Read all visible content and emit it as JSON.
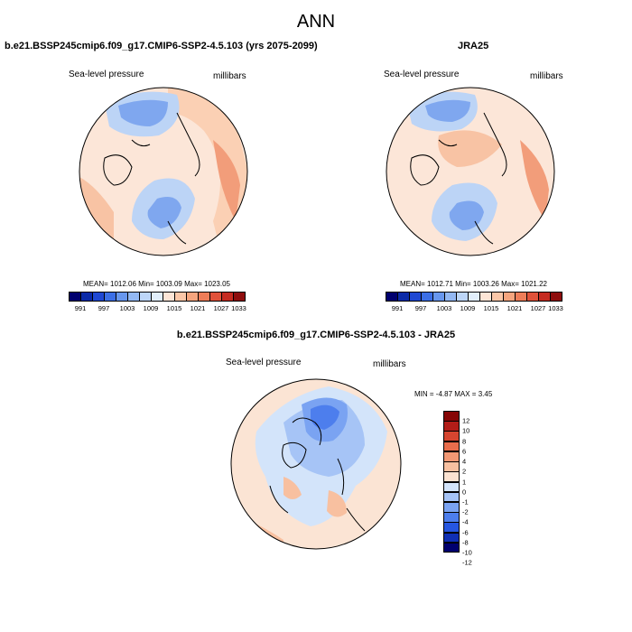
{
  "figure": {
    "title": "ANN"
  },
  "panels": [
    {
      "id": "model",
      "title": "b.e21.BSSP245cmip6.f09_g17.CMIP6-SSP2-4.5.103 (yrs 2075-2099)",
      "variable": "Sea-level pressure",
      "units": "millibars",
      "stats": "MEAN= 1012.06   Min= 1003.09   Max= 1023.05"
    },
    {
      "id": "obs",
      "title": "JRA25",
      "variable": "Sea-level pressure",
      "units": "millibars",
      "stats": "MEAN= 1012.71   Min= 1003.26   Max= 1021.22"
    },
    {
      "id": "diff",
      "title": "b.e21.BSSP245cmip6.f09_g17.CMIP6-SSP2-4.5.103 - JRA25",
      "variable": "Sea-level pressure",
      "units": "millibars",
      "stats": "MIN = -4.87  MAX =  3.45"
    }
  ],
  "colors": {
    "abs_scale": [
      "#00006e",
      "#0b2aa8",
      "#1f48d3",
      "#3c6fe6",
      "#6897ee",
      "#93b8f3",
      "#bdd6f8",
      "#e1eefb",
      "#fde5d6",
      "#fbc7a8",
      "#f6a57e",
      "#ee7d58",
      "#e0523a",
      "#c52b21",
      "#8e0d0d"
    ],
    "diff_scale": [
      "#00006e",
      "#0f2fb4",
      "#2656e0",
      "#4d7eed",
      "#7aa3f2",
      "#a6c4f6",
      "#d3e4fa",
      "#fbe2d1",
      "#f8c0a0",
      "#f29874",
      "#e86d4c",
      "#d64530",
      "#b21d18",
      "#860606"
    ]
  },
  "chart_data": [
    {
      "type": "heatmap",
      "projection": "north polar stereographic",
      "title": "b.e21.BSSP245cmip6.f09_g17.CMIP6-SSP2-4.5.103 (yrs 2075-2099)",
      "variable": "Sea-level pressure",
      "units": "millibars",
      "mean": 1012.06,
      "min": 1003.09,
      "max": 1023.05,
      "colorbar_ticks": [
        "991",
        "997",
        "1003",
        "1009",
        "1015",
        "1021",
        "1027",
        "1033"
      ],
      "colorbar_range": [
        988,
        1036
      ]
    },
    {
      "type": "heatmap",
      "projection": "north polar stereographic",
      "title": "JRA25",
      "variable": "Sea-level pressure",
      "units": "millibars",
      "mean": 1012.71,
      "min": 1003.26,
      "max": 1021.22,
      "colorbar_ticks": [
        "991",
        "997",
        "1003",
        "1009",
        "1015",
        "1021",
        "1027",
        "1033"
      ],
      "colorbar_range": [
        988,
        1036
      ]
    },
    {
      "type": "heatmap",
      "projection": "north polar stereographic",
      "title": "b.e21.BSSP245cmip6.f09_g17.CMIP6-SSP2-4.5.103 - JRA25",
      "variable": "Sea-level pressure difference",
      "units": "millibars",
      "min": -4.87,
      "max": 3.45,
      "colorbar_ticks": [
        "12",
        "10",
        "8",
        "6",
        "4",
        "2",
        "1",
        "0",
        "-1",
        "-2",
        "-4",
        "-6",
        "-8",
        "-10",
        "-12"
      ],
      "colorbar_orientation": "vertical"
    }
  ]
}
